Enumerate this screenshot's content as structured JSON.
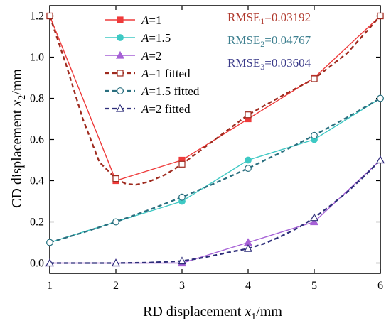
{
  "chart_data": {
    "type": "line",
    "title": "",
    "xlabel_main": "RD displacement ",
    "xlabel_var": "x",
    "xlabel_sub": "1",
    "xlabel_unit": "/mm",
    "ylabel_main": "CD displacement ",
    "ylabel_var": "x",
    "ylabel_sub": "2",
    "ylabel_unit": "/mm",
    "xlim": [
      1,
      6
    ],
    "ylim": [
      -0.05,
      1.25
    ],
    "x_ticks": [
      1,
      2,
      3,
      4,
      5,
      6
    ],
    "y_ticks": [
      0.0,
      0.2,
      0.4,
      0.6,
      0.8,
      1.0,
      1.2
    ],
    "y_tick_labels": [
      "0.0",
      "0.2",
      "0.4",
      "0.6",
      "0.8",
      "1.0",
      "1.2"
    ],
    "grid": false,
    "legend_position": "top-left",
    "series": [
      {
        "name": "=1",
        "var": "A",
        "kind": "measured",
        "color": "#ee3b3b",
        "marker": "square-filled",
        "x": [
          1,
          2,
          3,
          4,
          5,
          6
        ],
        "y": [
          1.2,
          0.4,
          0.5,
          0.7,
          0.9,
          1.2
        ]
      },
      {
        "name": "=1.5",
        "var": "A",
        "kind": "measured",
        "color": "#3ec9c4",
        "marker": "circle-filled",
        "x": [
          1,
          2,
          3,
          4,
          5,
          6
        ],
        "y": [
          0.1,
          0.2,
          0.3,
          0.5,
          0.6,
          0.8
        ]
      },
      {
        "name": "=2",
        "var": "A",
        "kind": "measured",
        "color": "#a661d6",
        "marker": "triangle-filled",
        "x": [
          1,
          2,
          3,
          4,
          5,
          6
        ],
        "y": [
          0.0,
          0.0,
          0.0,
          0.1,
          0.2,
          0.5
        ]
      },
      {
        "name": "=1 fitted",
        "var": "A",
        "kind": "fitted",
        "color": "#9e2a1e",
        "marker": "square-open",
        "x": [
          1,
          2,
          3,
          4,
          5,
          6
        ],
        "y": [
          1.2,
          0.41,
          0.48,
          0.72,
          0.895,
          1.2
        ],
        "curve_x": [
          1.0,
          1.25,
          1.5,
          1.75,
          2.0,
          2.15,
          2.3,
          2.5,
          2.75,
          3.0,
          3.5,
          4.0,
          4.5,
          5.0,
          5.5,
          6.0
        ],
        "curve_y": [
          1.2,
          0.96,
          0.7,
          0.49,
          0.41,
          0.385,
          0.38,
          0.395,
          0.43,
          0.48,
          0.6,
          0.72,
          0.81,
          0.895,
          1.02,
          1.2
        ]
      },
      {
        "name": "=1.5 fitted",
        "var": "A",
        "kind": "fitted",
        "color": "#2a6f7f",
        "marker": "circle-open",
        "x": [
          1,
          2,
          3,
          4,
          5,
          6
        ],
        "y": [
          0.1,
          0.2,
          0.32,
          0.46,
          0.62,
          0.8
        ],
        "curve_x": [
          1,
          1.5,
          2,
          2.5,
          3,
          3.5,
          4,
          4.5,
          5,
          5.5,
          6
        ],
        "curve_y": [
          0.1,
          0.148,
          0.2,
          0.258,
          0.32,
          0.388,
          0.46,
          0.538,
          0.62,
          0.708,
          0.8
        ]
      },
      {
        "name": "=2 fitted",
        "var": "A",
        "kind": "fitted",
        "color": "#2e2e7a",
        "marker": "triangle-open",
        "x": [
          1,
          2,
          3,
          4,
          5,
          6
        ],
        "y": [
          0.0,
          0.0,
          0.01,
          0.07,
          0.22,
          0.5
        ],
        "curve_x": [
          1,
          1.5,
          2,
          2.5,
          3,
          3.25,
          3.5,
          3.75,
          4,
          4.25,
          4.5,
          4.75,
          5,
          5.25,
          5.5,
          5.75,
          6
        ],
        "curve_y": [
          0.0,
          0.0,
          0.0,
          0.002,
          0.01,
          0.022,
          0.038,
          0.055,
          0.07,
          0.095,
          0.13,
          0.17,
          0.22,
          0.28,
          0.345,
          0.42,
          0.5
        ]
      }
    ],
    "annotations": [
      {
        "prefix": "RMSE",
        "sub": "1",
        "value": "=0.03192",
        "color": "#b03a2e"
      },
      {
        "prefix": "RMSE",
        "sub": "2",
        "value": "=0.04767",
        "color": "#3d7f8f"
      },
      {
        "prefix": "RMSE",
        "sub": "3",
        "value": "=0.03604",
        "color": "#3b3b8a"
      }
    ]
  }
}
